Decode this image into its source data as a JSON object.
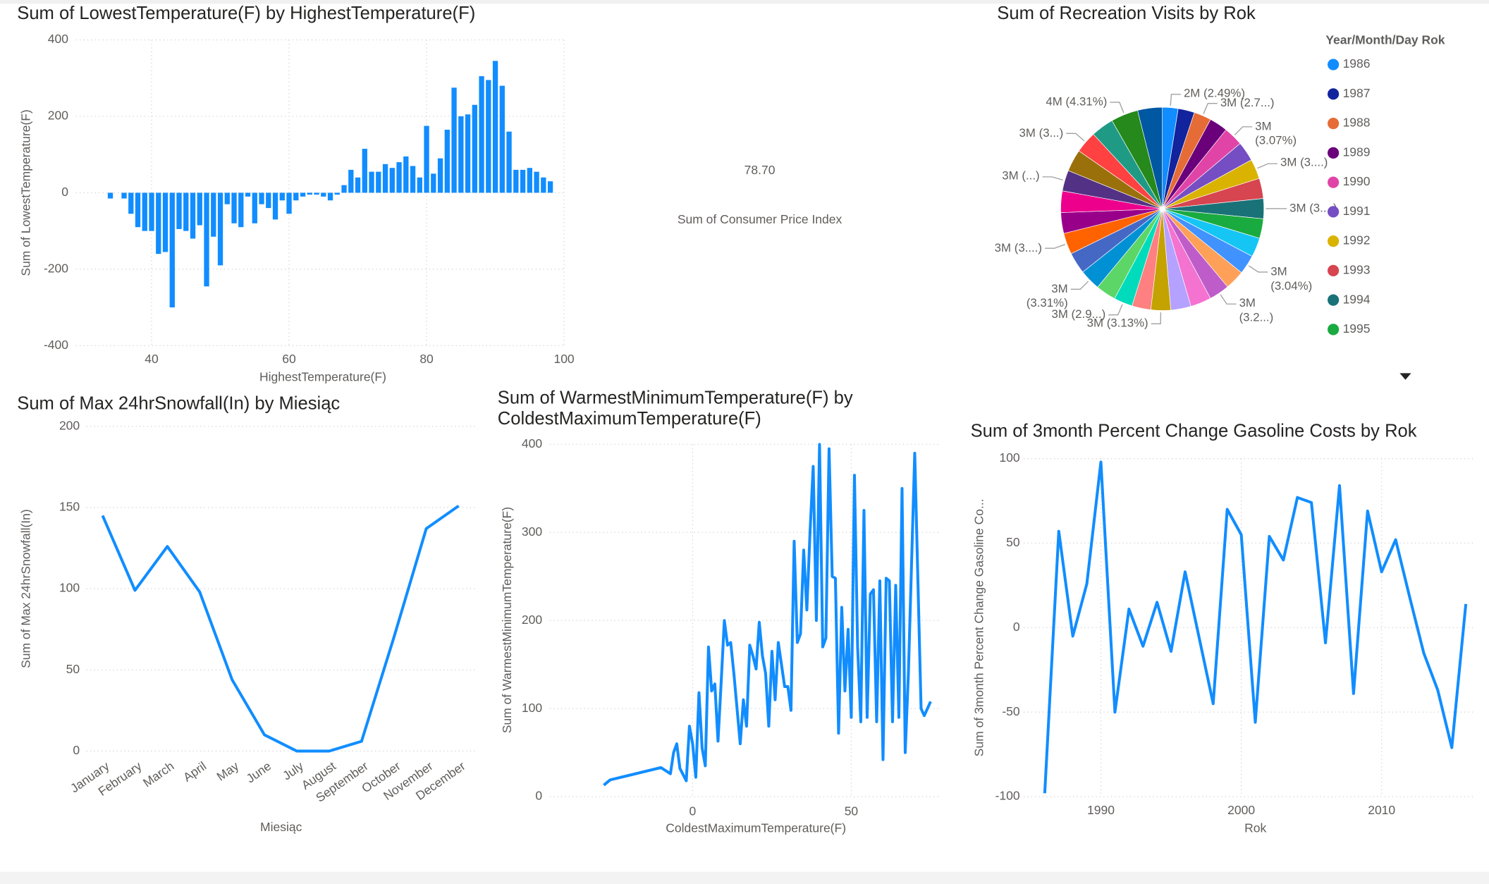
{
  "chart_data": [
    {
      "type": "bar",
      "title": "Sum of LowestTemperature(F) by HighestTemperature(F)",
      "x_label": "HighestTemperature(F)",
      "y_label": "Sum of LowestTemperature(F)",
      "color": "#118DFF",
      "grid": true,
      "x": [
        34,
        36,
        37,
        38,
        39,
        40,
        41,
        42,
        43,
        44,
        45,
        46,
        47,
        48,
        49,
        50,
        51,
        52,
        53,
        54,
        55,
        56,
        57,
        58,
        59,
        60,
        61,
        62,
        63,
        64,
        65,
        66,
        67,
        68,
        69,
        70,
        71,
        72,
        73,
        74,
        75,
        76,
        77,
        78,
        79,
        80,
        81,
        82,
        83,
        84,
        85,
        86,
        87,
        88,
        89,
        90,
        91,
        92,
        93,
        94,
        95,
        96,
        97,
        98
      ],
      "values": [
        -15,
        -15,
        -55,
        -90,
        -100,
        -100,
        -160,
        -155,
        -300,
        -95,
        -100,
        -120,
        -85,
        -245,
        -115,
        -190,
        -30,
        -80,
        -90,
        -10,
        -80,
        -30,
        -40,
        -70,
        -20,
        -55,
        -20,
        -10,
        -5,
        -5,
        -10,
        -20,
        -5,
        20,
        60,
        40,
        115,
        55,
        55,
        75,
        65,
        80,
        95,
        70,
        40,
        175,
        50,
        90,
        165,
        275,
        200,
        205,
        230,
        305,
        295,
        345,
        280,
        160,
        60,
        60,
        65,
        55,
        40,
        30
      ],
      "xlim": [
        29,
        100
      ],
      "xticks": [
        40,
        60,
        80,
        100
      ],
      "ylim": [
        -400,
        400
      ],
      "yticks": [
        -400,
        -200,
        0,
        200,
        400
      ]
    },
    {
      "type": "card",
      "title": "Sum of Consumer Price Index",
      "values": [
        78.7
      ],
      "value_labels": [
        "78.70"
      ]
    },
    {
      "type": "pie",
      "title": "Sum of Recreation Visits by Rok",
      "legend_title": "Year/Month/Day Rok",
      "legend": "right",
      "categories": [
        "1986",
        "1987",
        "1988",
        "1989",
        "1990",
        "1991",
        "1992",
        "1993",
        "1994",
        "1995",
        null,
        null,
        null,
        null,
        null,
        null,
        null,
        null,
        null,
        null,
        null,
        null,
        null,
        null,
        null,
        null,
        null,
        null,
        null,
        null,
        null
      ],
      "values": [
        2.49,
        2.6,
        2.75,
        2.9,
        3.07,
        3.1,
        3.15,
        3.2,
        3.18,
        3.1,
        3.05,
        3.04,
        3.1,
        3.22,
        3.3,
        3.2,
        3.13,
        3.0,
        2.95,
        3.2,
        3.31,
        3.4,
        3.35,
        3.3,
        3.4,
        3.3,
        3.5,
        3.45,
        3.6,
        4.31,
        3.9
      ],
      "value_labels": [
        "2M (2.49%)",
        null,
        "3M (2.7...)",
        null,
        "3M (3.07%)",
        null,
        "3M (3....)",
        null,
        "3M (3....)",
        null,
        null,
        "3M (3.04%)",
        null,
        "3M (3.2...)",
        null,
        null,
        "3M (3.13%)",
        null,
        "3M (2.9...)",
        null,
        "3M (3.31%)",
        null,
        "3M (3....)",
        null,
        null,
        "3M (...)",
        null,
        "3M (3...)",
        null,
        "4M (4.31%)",
        null
      ],
      "colors": [
        "#118DFF",
        "#12239E",
        "#E66C37",
        "#6B007B",
        "#E044A7",
        "#744EC2",
        "#D9B300",
        "#D64550",
        "#197278",
        "#1AAB40",
        "#15C6F4",
        "#4092FF",
        "#FFA058",
        "#BE5DC9",
        "#F472D0",
        "#B5A1FF",
        "#C4A200",
        "#FF8080",
        "#00DBBC",
        "#5BD667",
        "#0091D5",
        "#4668C5",
        "#FF6300",
        "#99008A",
        "#EC008C",
        "#533285",
        "#99700A",
        "#FF4141",
        "#1F9A85",
        "#25891C",
        "#0057A2"
      ]
    },
    {
      "type": "line",
      "title": "Sum of Max 24hrSnowfall(In) by Miesiąc",
      "x_label": "Miesiąc",
      "y_label": "Sum of Max 24hrSnowfall(In)",
      "color": "#118DFF",
      "grid": true,
      "categories": [
        "January",
        "February",
        "March",
        "April",
        "May",
        "June",
        "July",
        "August",
        "September",
        "October",
        "November",
        "December"
      ],
      "values": [
        145,
        99,
        126,
        98,
        44,
        10,
        0,
        0,
        6,
        70,
        137,
        151
      ],
      "ylim": [
        0,
        200
      ],
      "yticks": [
        0,
        50,
        100,
        150,
        200
      ]
    },
    {
      "type": "line",
      "title": "Sum of WarmestMinimumTemperature(F) by ColdestMaximumTemperature(F)",
      "x_label": "ColdestMaximumTemperature(F)",
      "y_label": "Sum of WarmestMinimumTemperature(F)",
      "color": "#118DFF",
      "grid": true,
      "x": [
        -28,
        -26,
        -10,
        -7,
        -6,
        -5,
        -4,
        -3,
        -2,
        -1,
        0,
        1,
        2,
        3,
        4,
        5,
        6,
        7,
        8,
        9,
        10,
        11,
        12,
        13,
        14,
        15,
        16,
        17,
        18,
        19,
        20,
        21,
        22,
        23,
        24,
        25,
        26,
        27,
        28,
        29,
        30,
        31,
        32,
        33,
        34,
        35,
        36,
        37,
        38,
        39,
        40,
        41,
        42,
        43,
        44,
        45,
        46,
        47,
        48,
        49,
        50,
        51,
        52,
        53,
        54,
        55,
        56,
        57,
        58,
        59,
        60,
        61,
        62,
        63,
        64,
        65,
        66,
        67,
        68,
        70,
        72,
        73,
        75
      ],
      "values": [
        13,
        19,
        33,
        26,
        50,
        60,
        32,
        25,
        18,
        80,
        60,
        22,
        118,
        55,
        35,
        170,
        120,
        128,
        63,
        130,
        200,
        172,
        175,
        140,
        100,
        60,
        110,
        80,
        172,
        160,
        145,
        198,
        160,
        140,
        80,
        165,
        110,
        175,
        150,
        125,
        125,
        98,
        290,
        175,
        185,
        280,
        212,
        300,
        375,
        200,
        400,
        170,
        180,
        395,
        250,
        248,
        72,
        215,
        120,
        190,
        90,
        365,
        170,
        85,
        325,
        90,
        230,
        235,
        85,
        245,
        42,
        248,
        245,
        85,
        240,
        90,
        350,
        50,
        140,
        390,
        100,
        92,
        108
      ],
      "xlim": [
        -45,
        78
      ],
      "xticks": [
        0,
        50
      ],
      "ylim": [
        0,
        400
      ],
      "yticks": [
        0,
        100,
        200,
        300,
        400
      ]
    },
    {
      "type": "line",
      "title": "Sum of 3month Percent Change Gasoline Costs by Rok",
      "x_label": "Rok",
      "y_label": "Sum of 3month Percent Change Gasoline Co...",
      "color": "#118DFF",
      "grid": true,
      "x": [
        1986,
        1987,
        1988,
        1989,
        1990,
        1991,
        1992,
        1993,
        1994,
        1995,
        1996,
        1997,
        1998,
        1999,
        2000,
        2001,
        2002,
        2003,
        2004,
        2005,
        2006,
        2007,
        2008,
        2009,
        2010,
        2011,
        2012,
        2013,
        2014,
        2015,
        2016
      ],
      "values": [
        -98,
        57,
        -5,
        26,
        98,
        -50,
        11,
        -11,
        15,
        -14,
        33,
        -6,
        -45,
        70,
        55,
        -56,
        54,
        40,
        77,
        74,
        -9,
        84,
        -39,
        69,
        33,
        52,
        18,
        -15,
        -37,
        -71,
        14
      ],
      "xlim": [
        1984.5,
        2016.5
      ],
      "xticks": [
        1990,
        2000,
        2010
      ],
      "ylim": [
        -100,
        100
      ],
      "yticks": [
        -100,
        -50,
        0,
        50,
        100
      ]
    }
  ]
}
